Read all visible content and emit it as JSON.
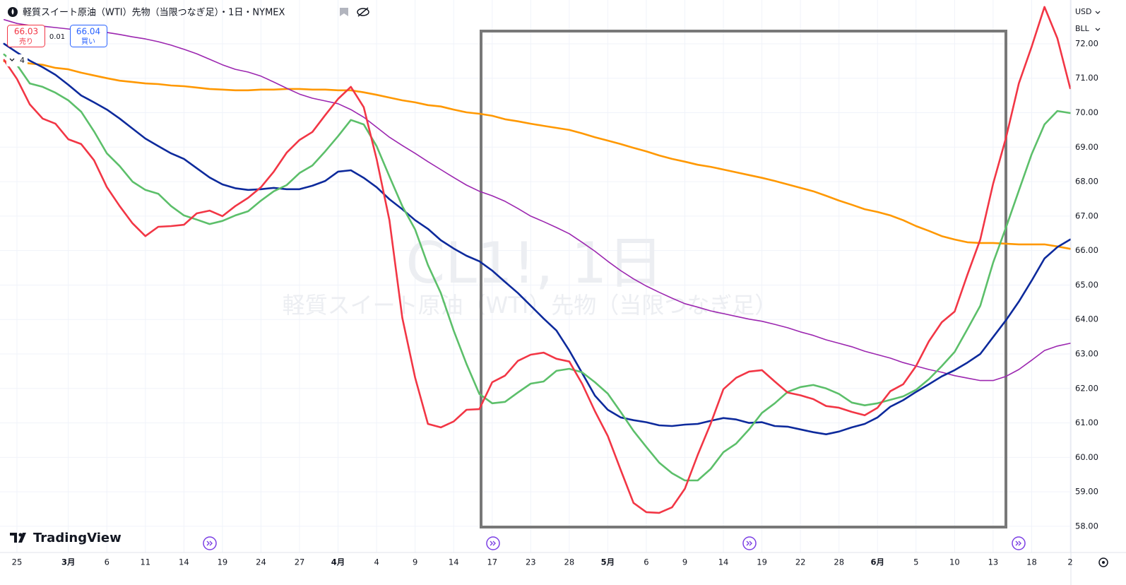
{
  "header": {
    "title": "軽質スイート原油（WTI）先物（当限つなぎ足）・1日・NYMEX",
    "sell": {
      "price": "66.03",
      "label": "売り"
    },
    "spread": "0.01",
    "buy": {
      "price": "66.04",
      "label": "買い"
    },
    "indicators": "4",
    "currency": "USD",
    "unit": "BLL"
  },
  "watermark": {
    "symbol": "CL1!, 1日",
    "description": "軽質スイート原油（WTI）先物（当限つなぎ足）"
  },
  "logo": "TradingView",
  "chart_data": {
    "type": "line",
    "categories": [
      null,
      "25",
      null,
      null,
      null,
      "3月",
      null,
      null,
      "6",
      null,
      null,
      "11",
      null,
      null,
      "14",
      null,
      null,
      "19",
      null,
      null,
      "24",
      null,
      null,
      "27",
      null,
      null,
      "4月",
      null,
      null,
      "4",
      null,
      null,
      "9",
      null,
      null,
      "14",
      null,
      null,
      "17",
      null,
      null,
      "23",
      null,
      null,
      "28",
      null,
      null,
      "5月",
      null,
      null,
      "6",
      null,
      null,
      "9",
      null,
      null,
      "14",
      null,
      null,
      "19",
      null,
      null,
      "22",
      null,
      null,
      "28",
      null,
      null,
      "6月",
      null,
      null,
      "5",
      null,
      null,
      "10",
      null,
      null,
      "13",
      null,
      null,
      "18",
      null,
      null,
      "2"
    ],
    "series": [
      {
        "color": "#ff9800",
        "values": [
          71.49,
          71.47,
          71.43,
          71.39,
          71.3,
          71.26,
          71.16,
          71.08,
          71,
          70.93,
          70.89,
          70.85,
          70.83,
          70.79,
          70.77,
          70.73,
          70.69,
          70.67,
          70.65,
          70.65,
          70.67,
          70.67,
          70.69,
          70.69,
          70.67,
          70.67,
          70.65,
          70.65,
          70.59,
          70.52,
          70.44,
          70.36,
          70.3,
          70.22,
          70.18,
          70.09,
          70.01,
          69.97,
          69.91,
          69.81,
          69.75,
          69.68,
          69.62,
          69.56,
          69.5,
          69.4,
          69.29,
          69.19,
          69.09,
          68.98,
          68.88,
          68.76,
          68.66,
          68.58,
          68.49,
          68.43,
          68.35,
          68.27,
          68.19,
          68.11,
          68.02,
          67.92,
          67.82,
          67.72,
          67.59,
          67.45,
          67.33,
          67.2,
          67.12,
          67.02,
          66.88,
          66.71,
          66.57,
          66.42,
          66.32,
          66.24,
          66.22,
          66.22,
          66.2,
          66.18,
          66.18,
          66.18,
          66.12,
          66.05
        ]
      },
      {
        "color": "#9c27b0",
        "values": [
          72.7,
          72.59,
          72.53,
          72.51,
          72.47,
          72.43,
          72.39,
          72.37,
          72.33,
          72.27,
          72.2,
          72.14,
          72.06,
          71.96,
          71.84,
          71.71,
          71.55,
          71.39,
          71.26,
          71.18,
          71.06,
          70.89,
          70.71,
          70.54,
          70.42,
          70.34,
          70.26,
          70.09,
          69.87,
          69.58,
          69.29,
          69.05,
          68.82,
          68.58,
          68.35,
          68.12,
          67.9,
          67.72,
          67.59,
          67.43,
          67.22,
          67,
          66.84,
          66.67,
          66.49,
          66.24,
          65.98,
          65.69,
          65.42,
          65.18,
          64.97,
          64.79,
          64.62,
          64.46,
          64.36,
          64.25,
          64.17,
          64.09,
          64.01,
          63.95,
          63.86,
          63.76,
          63.64,
          63.54,
          63.41,
          63.31,
          63.21,
          63.08,
          62.98,
          62.88,
          62.75,
          62.65,
          62.55,
          62.47,
          62.37,
          62.3,
          62.23,
          62.23,
          62.35,
          62.55,
          62.82,
          63.1,
          63.23,
          63.31
        ]
      },
      {
        "color": "#0d2a9c",
        "values": [
          72,
          71.75,
          71.51,
          71.32,
          71.1,
          70.81,
          70.5,
          70.3,
          70.09,
          69.83,
          69.54,
          69.25,
          69.03,
          68.82,
          68.66,
          68.39,
          68.12,
          67.92,
          67.81,
          67.76,
          67.78,
          67.82,
          67.78,
          67.78,
          67.88,
          68.02,
          68.29,
          68.33,
          68.11,
          67.84,
          67.49,
          67.2,
          66.88,
          66.63,
          66.3,
          66.06,
          65.85,
          65.69,
          65.42,
          65.09,
          64.77,
          64.4,
          64.03,
          63.68,
          63.1,
          62.45,
          61.79,
          61.38,
          61.16,
          61.08,
          61.02,
          60.93,
          60.91,
          60.95,
          60.97,
          61.06,
          61.14,
          61.1,
          61,
          61.02,
          60.91,
          60.89,
          60.81,
          60.73,
          60.67,
          60.75,
          60.87,
          60.97,
          61.16,
          61.47,
          61.66,
          61.9,
          62.12,
          62.35,
          62.53,
          62.75,
          63,
          63.49,
          63.98,
          64.52,
          65.13,
          65.77,
          66.1,
          66.32
        ]
      },
      {
        "color": "#5cbf6a",
        "values": [
          71.69,
          71.39,
          70.85,
          70.75,
          70.58,
          70.36,
          70.03,
          69.46,
          68.82,
          68.45,
          68,
          67.76,
          67.65,
          67.29,
          67.02,
          66.9,
          66.77,
          66.86,
          67.02,
          67.14,
          67.45,
          67.72,
          67.9,
          68.25,
          68.47,
          68.88,
          69.32,
          69.79,
          69.66,
          69.03,
          68.15,
          67.29,
          66.61,
          65.58,
          64.77,
          63.68,
          62.71,
          61.84,
          61.57,
          61.61,
          61.88,
          62.14,
          62.2,
          62.51,
          62.57,
          62.47,
          62.18,
          61.85,
          61.32,
          60.77,
          60.3,
          59.85,
          59.54,
          59.33,
          59.33,
          59.66,
          60.15,
          60.4,
          60.81,
          61.29,
          61.57,
          61.9,
          62.04,
          62.1,
          62,
          61.84,
          61.59,
          61.51,
          61.57,
          61.67,
          61.77,
          61.96,
          62.27,
          62.65,
          63.06,
          63.72,
          64.4,
          65.65,
          66.67,
          67.74,
          68.8,
          69.66,
          70.05,
          69.99
        ]
      },
      {
        "color": "#f23645",
        "values": [
          71.53,
          70.98,
          70.24,
          69.83,
          69.68,
          69.23,
          69.09,
          68.62,
          67.84,
          67.29,
          66.79,
          66.42,
          66.69,
          66.71,
          66.75,
          67.08,
          67.16,
          67,
          67.29,
          67.53,
          67.84,
          68.29,
          68.84,
          69.21,
          69.44,
          69.93,
          70.4,
          70.75,
          70.16,
          68.66,
          66.88,
          64.05,
          62.31,
          60.97,
          60.87,
          61.04,
          61.38,
          61.4,
          62.18,
          62.37,
          62.8,
          62.98,
          63.04,
          62.86,
          62.78,
          62.14,
          61.34,
          60.62,
          59.64,
          58.68,
          58.41,
          58.39,
          58.55,
          59.09,
          60.07,
          60.97,
          61.98,
          62.31,
          62.49,
          62.53,
          62.2,
          61.88,
          61.8,
          61.69,
          61.49,
          61.44,
          61.32,
          61.22,
          61.44,
          61.92,
          62.12,
          62.65,
          63.37,
          63.92,
          64.23,
          65.3,
          66.32,
          67.94,
          69.27,
          70.85,
          71.92,
          73.07,
          72.16,
          70.71
        ]
      }
    ],
    "ylim": [
      57.24,
      73.27
    ],
    "yticks": [
      {
        "value": 58,
        "label": "58.00"
      },
      {
        "value": 59,
        "label": "59.00"
      },
      {
        "value": 60,
        "label": "60.00"
      },
      {
        "value": 61,
        "label": "61.00"
      },
      {
        "value": 62,
        "label": "62.00"
      },
      {
        "value": 63,
        "label": "63.00"
      },
      {
        "value": 64,
        "label": "64.00"
      },
      {
        "value": 65,
        "label": "65.00"
      },
      {
        "value": 66,
        "label": "66.00"
      },
      {
        "value": 67,
        "label": "67.00"
      },
      {
        "value": 68,
        "label": "68.00"
      },
      {
        "value": 69,
        "label": "69.00"
      },
      {
        "value": 70,
        "label": "70.00"
      },
      {
        "value": 71,
        "label": "71.00"
      },
      {
        "value": 72,
        "label": "72.00"
      }
    ],
    "grid": true
  }
}
